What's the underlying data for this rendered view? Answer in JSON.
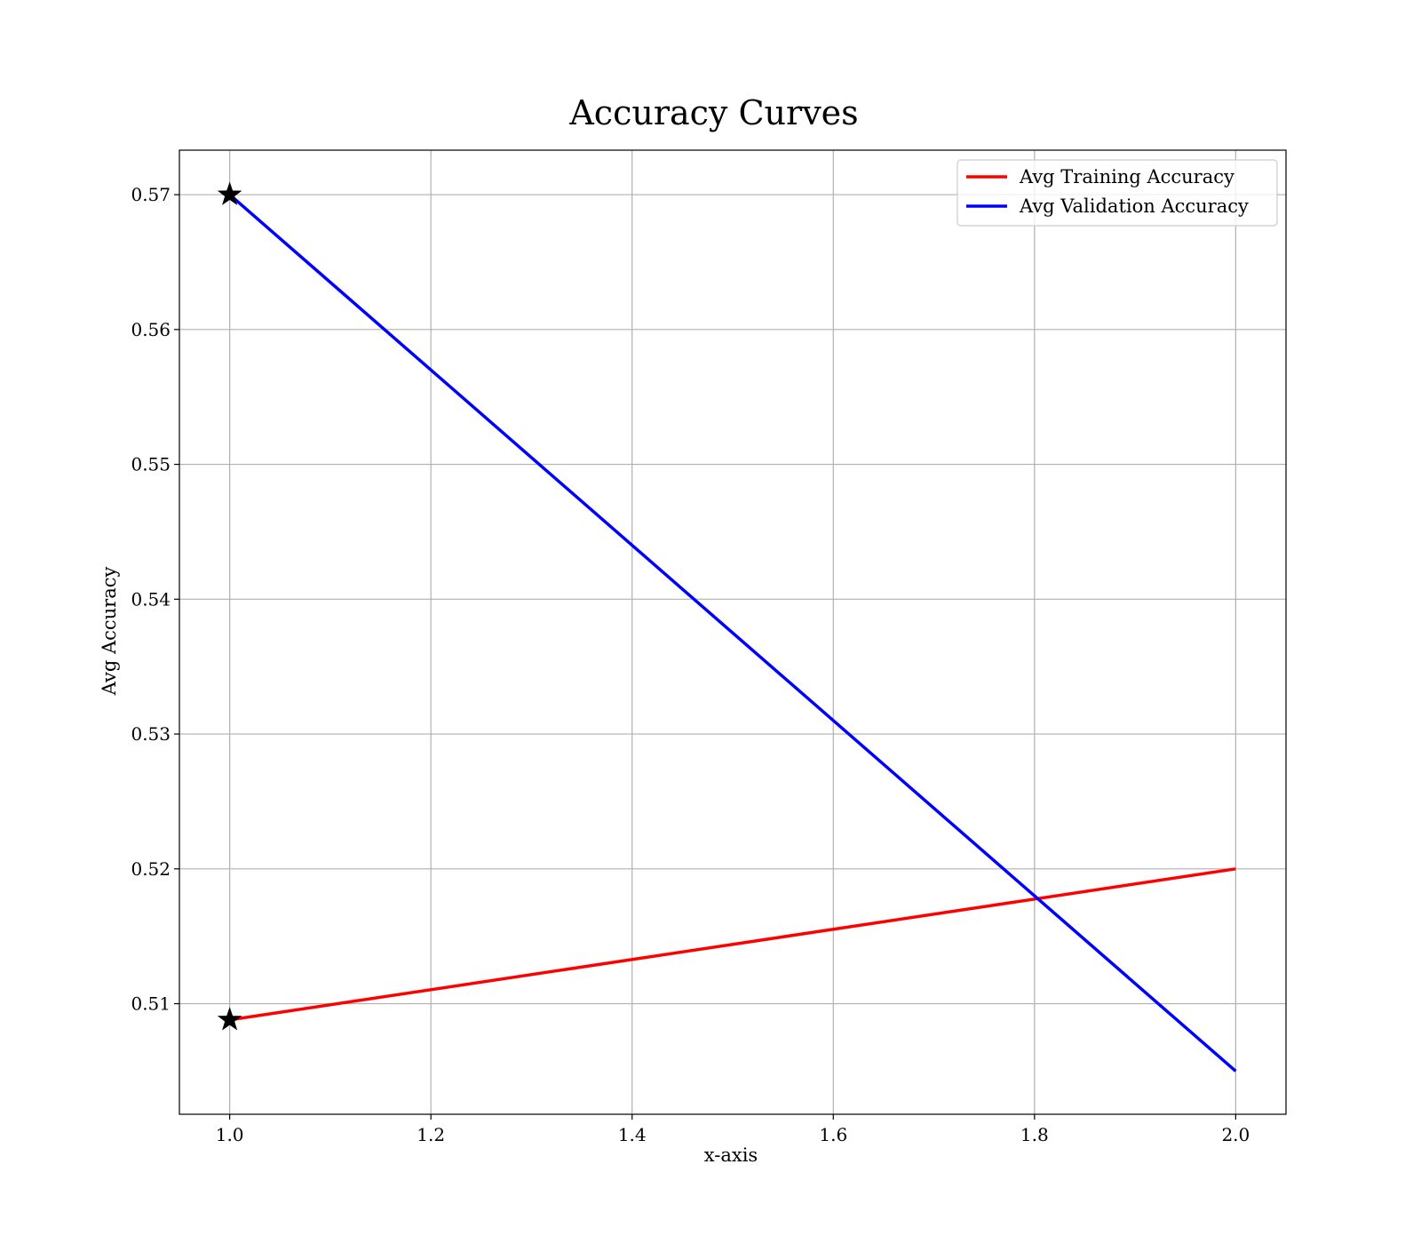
{
  "chart_data": {
    "type": "line",
    "title": "Accuracy Curves",
    "xlabel": "x-axis",
    "ylabel": "Avg Accuracy",
    "xlim": [
      0.95,
      2.05
    ],
    "ylim": [
      0.5018,
      0.5733
    ],
    "x_ticks": [
      "1.0",
      "1.2",
      "1.4",
      "1.6",
      "1.8",
      "2.0"
    ],
    "y_ticks": [
      "0.51",
      "0.52",
      "0.53",
      "0.54",
      "0.55",
      "0.56",
      "0.57"
    ],
    "x_tick_values": [
      1.0,
      1.2,
      1.4,
      1.6,
      1.8,
      2.0
    ],
    "y_tick_values": [
      0.51,
      0.52,
      0.53,
      0.54,
      0.55,
      0.56,
      0.57
    ],
    "grid": true,
    "legend_position": "top-right",
    "x": [
      1.0,
      2.0
    ],
    "series": [
      {
        "name": "Avg Training Accuracy",
        "color": "#ff0000",
        "values": [
          0.5088,
          0.52
        ]
      },
      {
        "name": "Avg Validation Accuracy",
        "color": "#0000ff",
        "values": [
          0.57,
          0.505
        ]
      }
    ],
    "markers": [
      {
        "marker": "star",
        "color": "#000000",
        "x": 1.0,
        "y": 0.57
      },
      {
        "marker": "star",
        "color": "#000000",
        "x": 1.0,
        "y": 0.5088
      }
    ]
  }
}
